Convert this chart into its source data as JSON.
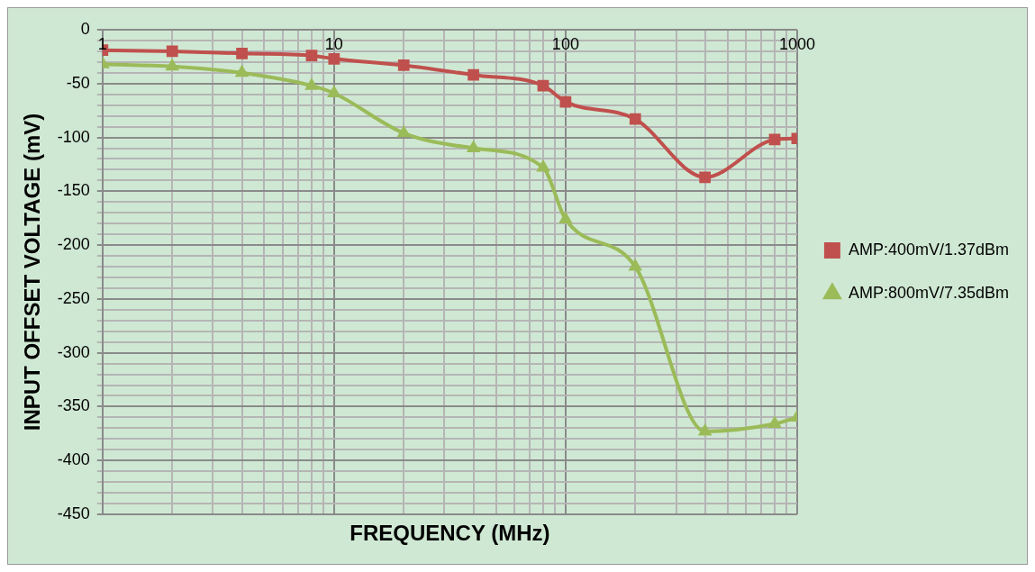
{
  "chart_data": {
    "type": "line",
    "xlabel": "FREQUENCY (MHz)",
    "ylabel": "INPUT OFFSET VOLTAGE (mV)",
    "log": "x",
    "grid": true,
    "legend": "right",
    "line_style": "solid",
    "xlim": [
      1,
      1000
    ],
    "ylim": [
      -450,
      0
    ],
    "xticks": [
      1,
      {
        "value": 2,
        "label": null
      },
      {
        "value": 3,
        "label": null
      },
      {
        "value": 4,
        "label": null
      },
      {
        "value": 5,
        "label": null
      },
      {
        "value": 6,
        "label": null
      },
      {
        "value": 7,
        "label": null
      },
      {
        "value": 8,
        "label": null
      },
      {
        "value": 9,
        "label": null
      },
      10,
      {
        "value": 20,
        "label": null
      },
      {
        "value": 30,
        "label": null
      },
      {
        "value": 40,
        "label": null
      },
      {
        "value": 50,
        "label": null
      },
      {
        "value": 60,
        "label": null
      },
      {
        "value": 70,
        "label": null
      },
      {
        "value": 80,
        "label": null
      },
      {
        "value": 90,
        "label": null
      },
      100,
      {
        "value": 200,
        "label": null
      },
      {
        "value": 300,
        "label": null
      },
      {
        "value": 400,
        "label": null
      },
      {
        "value": 500,
        "label": null
      },
      {
        "value": 600,
        "label": null
      },
      {
        "value": 700,
        "label": null
      },
      {
        "value": 800,
        "label": null
      },
      {
        "value": 900,
        "label": null
      },
      1000
    ],
    "yticks": [
      -450,
      {
        "value": -440,
        "label": null
      },
      {
        "value": -430,
        "label": null
      },
      {
        "value": -420,
        "label": null
      },
      {
        "value": -410,
        "label": null
      },
      -400,
      {
        "value": -390,
        "label": null
      },
      {
        "value": -380,
        "label": null
      },
      {
        "value": -370,
        "label": null
      },
      {
        "value": -360,
        "label": null
      },
      -350,
      {
        "value": -340,
        "label": null
      },
      {
        "value": -330,
        "label": null
      },
      {
        "value": -320,
        "label": null
      },
      {
        "value": -310,
        "label": null
      },
      -300,
      {
        "value": -290,
        "label": null
      },
      {
        "value": -280,
        "label": null
      },
      {
        "value": -270,
        "label": null
      },
      {
        "value": -260,
        "label": null
      },
      -250,
      {
        "value": -240,
        "label": null
      },
      {
        "value": -230,
        "label": null
      },
      {
        "value": -220,
        "label": null
      },
      {
        "value": -210,
        "label": null
      },
      -200,
      {
        "value": -190,
        "label": null
      },
      {
        "value": -180,
        "label": null
      },
      {
        "value": -170,
        "label": null
      },
      {
        "value": -160,
        "label": null
      },
      -150,
      {
        "value": -140,
        "label": null
      },
      {
        "value": -130,
        "label": null
      },
      {
        "value": -120,
        "label": null
      },
      {
        "value": -110,
        "label": null
      },
      -100,
      {
        "value": -90,
        "label": null
      },
      {
        "value": -80,
        "label": null
      },
      {
        "value": -70,
        "label": null
      },
      {
        "value": -60,
        "label": null
      },
      -50,
      {
        "value": -40,
        "label": null
      },
      {
        "value": -30,
        "label": null
      },
      {
        "value": -20,
        "label": null
      },
      {
        "value": -10,
        "label": null
      },
      0
    ],
    "x": [
      1,
      2,
      4,
      8,
      10,
      20,
      40,
      80,
      100,
      200,
      400,
      800,
      1000
    ],
    "series": [
      {
        "name": "AMP:400mV/1.37dBm",
        "color": "#c0504d",
        "marker": "square",
        "values": [
          -19,
          -20,
          -22,
          -24,
          -27,
          -33,
          -42,
          -52,
          -67,
          -83,
          -137,
          -102,
          -101
        ]
      },
      {
        "name": "AMP:800mV/7.35dBm",
        "color": "#9bbb59",
        "marker": "triangle",
        "values": [
          -32,
          -34,
          -40,
          -52,
          -59,
          -96,
          -110,
          -128,
          -176,
          -220,
          -373,
          -366,
          -360
        ]
      }
    ]
  }
}
